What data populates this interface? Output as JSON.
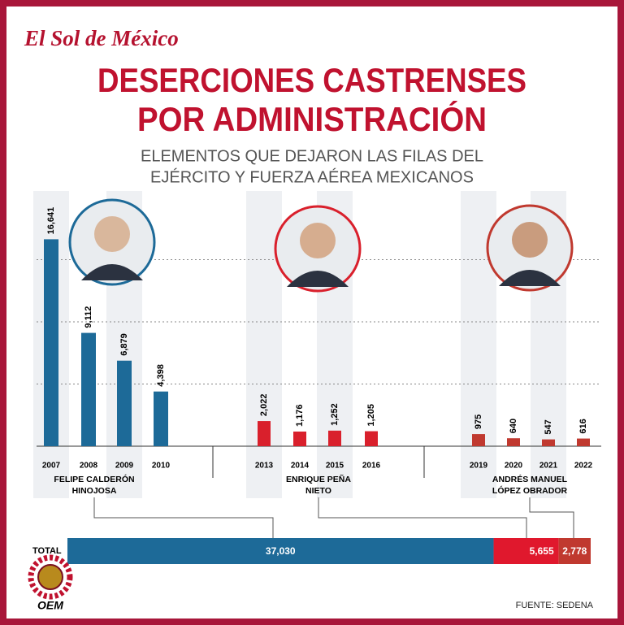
{
  "header": {
    "brand": "El Sol de México",
    "title": [
      "DESERCIONES CASTRENSES",
      "POR ADMINISTRACIÓN"
    ],
    "subtitle": [
      "ELEMENTOS QUE DEJARON LAS FILAS DEL",
      "EJÉRCITO Y FUERZA AÉREA MEXICANOS"
    ]
  },
  "chart_data": [
    {
      "type": "bar",
      "categories": [
        "2007",
        "2008",
        "2009",
        "2010",
        "2013",
        "2014",
        "2015",
        "2016",
        "2019",
        "2020",
        "2021",
        "2022"
      ],
      "series": [
        {
          "name": [
            "FELIPE CALDERÓN",
            "HINOJOSA"
          ],
          "color": "#1d6a98",
          "values": [
            16641,
            9112,
            6879,
            4398,
            null,
            null,
            null,
            null,
            null,
            null,
            null,
            null
          ],
          "value_labels": [
            "16,641",
            "9,112",
            "6,879",
            "4,398",
            null,
            null,
            null,
            null,
            null,
            null,
            null,
            null
          ]
        },
        {
          "name": [
            "ENRIQUE PEÑA",
            "NIETO"
          ],
          "color": "#d9202c",
          "values": [
            null,
            null,
            null,
            null,
            2022,
            1176,
            1252,
            1205,
            null,
            null,
            null,
            null
          ],
          "value_labels": [
            null,
            null,
            null,
            null,
            "2,022",
            "1,176",
            "1,252",
            "1,205",
            null,
            null,
            null,
            null
          ]
        },
        {
          "name": [
            "ANDRÉS MANUEL",
            "LÓPEZ OBRADOR"
          ],
          "color": "#c0392f",
          "values": [
            null,
            null,
            null,
            null,
            null,
            null,
            null,
            null,
            975,
            640,
            547,
            616
          ]
        }
      ],
      "ylim": [
        0,
        20000
      ],
      "yticks": [
        0,
        5000,
        10000,
        15000
      ],
      "grid": true
    },
    {
      "type": "stacked-bar",
      "orientation": "horizontal",
      "categories": [
        "TOTAL"
      ],
      "series": [
        {
          "color": "#1d6a98",
          "values": [
            37030
          ],
          "value_labels": [
            "37,030"
          ]
        },
        {
          "color": "#e0182d",
          "values": [
            5655
          ],
          "value_labels": [
            "5,655"
          ]
        },
        {
          "color": "#c0392f",
          "values": [
            2778
          ],
          "value_labels": [
            "2,778"
          ]
        }
      ]
    }
  ],
  "footer": {
    "source": "FUENTE: SEDENA",
    "logo": "OEM"
  }
}
